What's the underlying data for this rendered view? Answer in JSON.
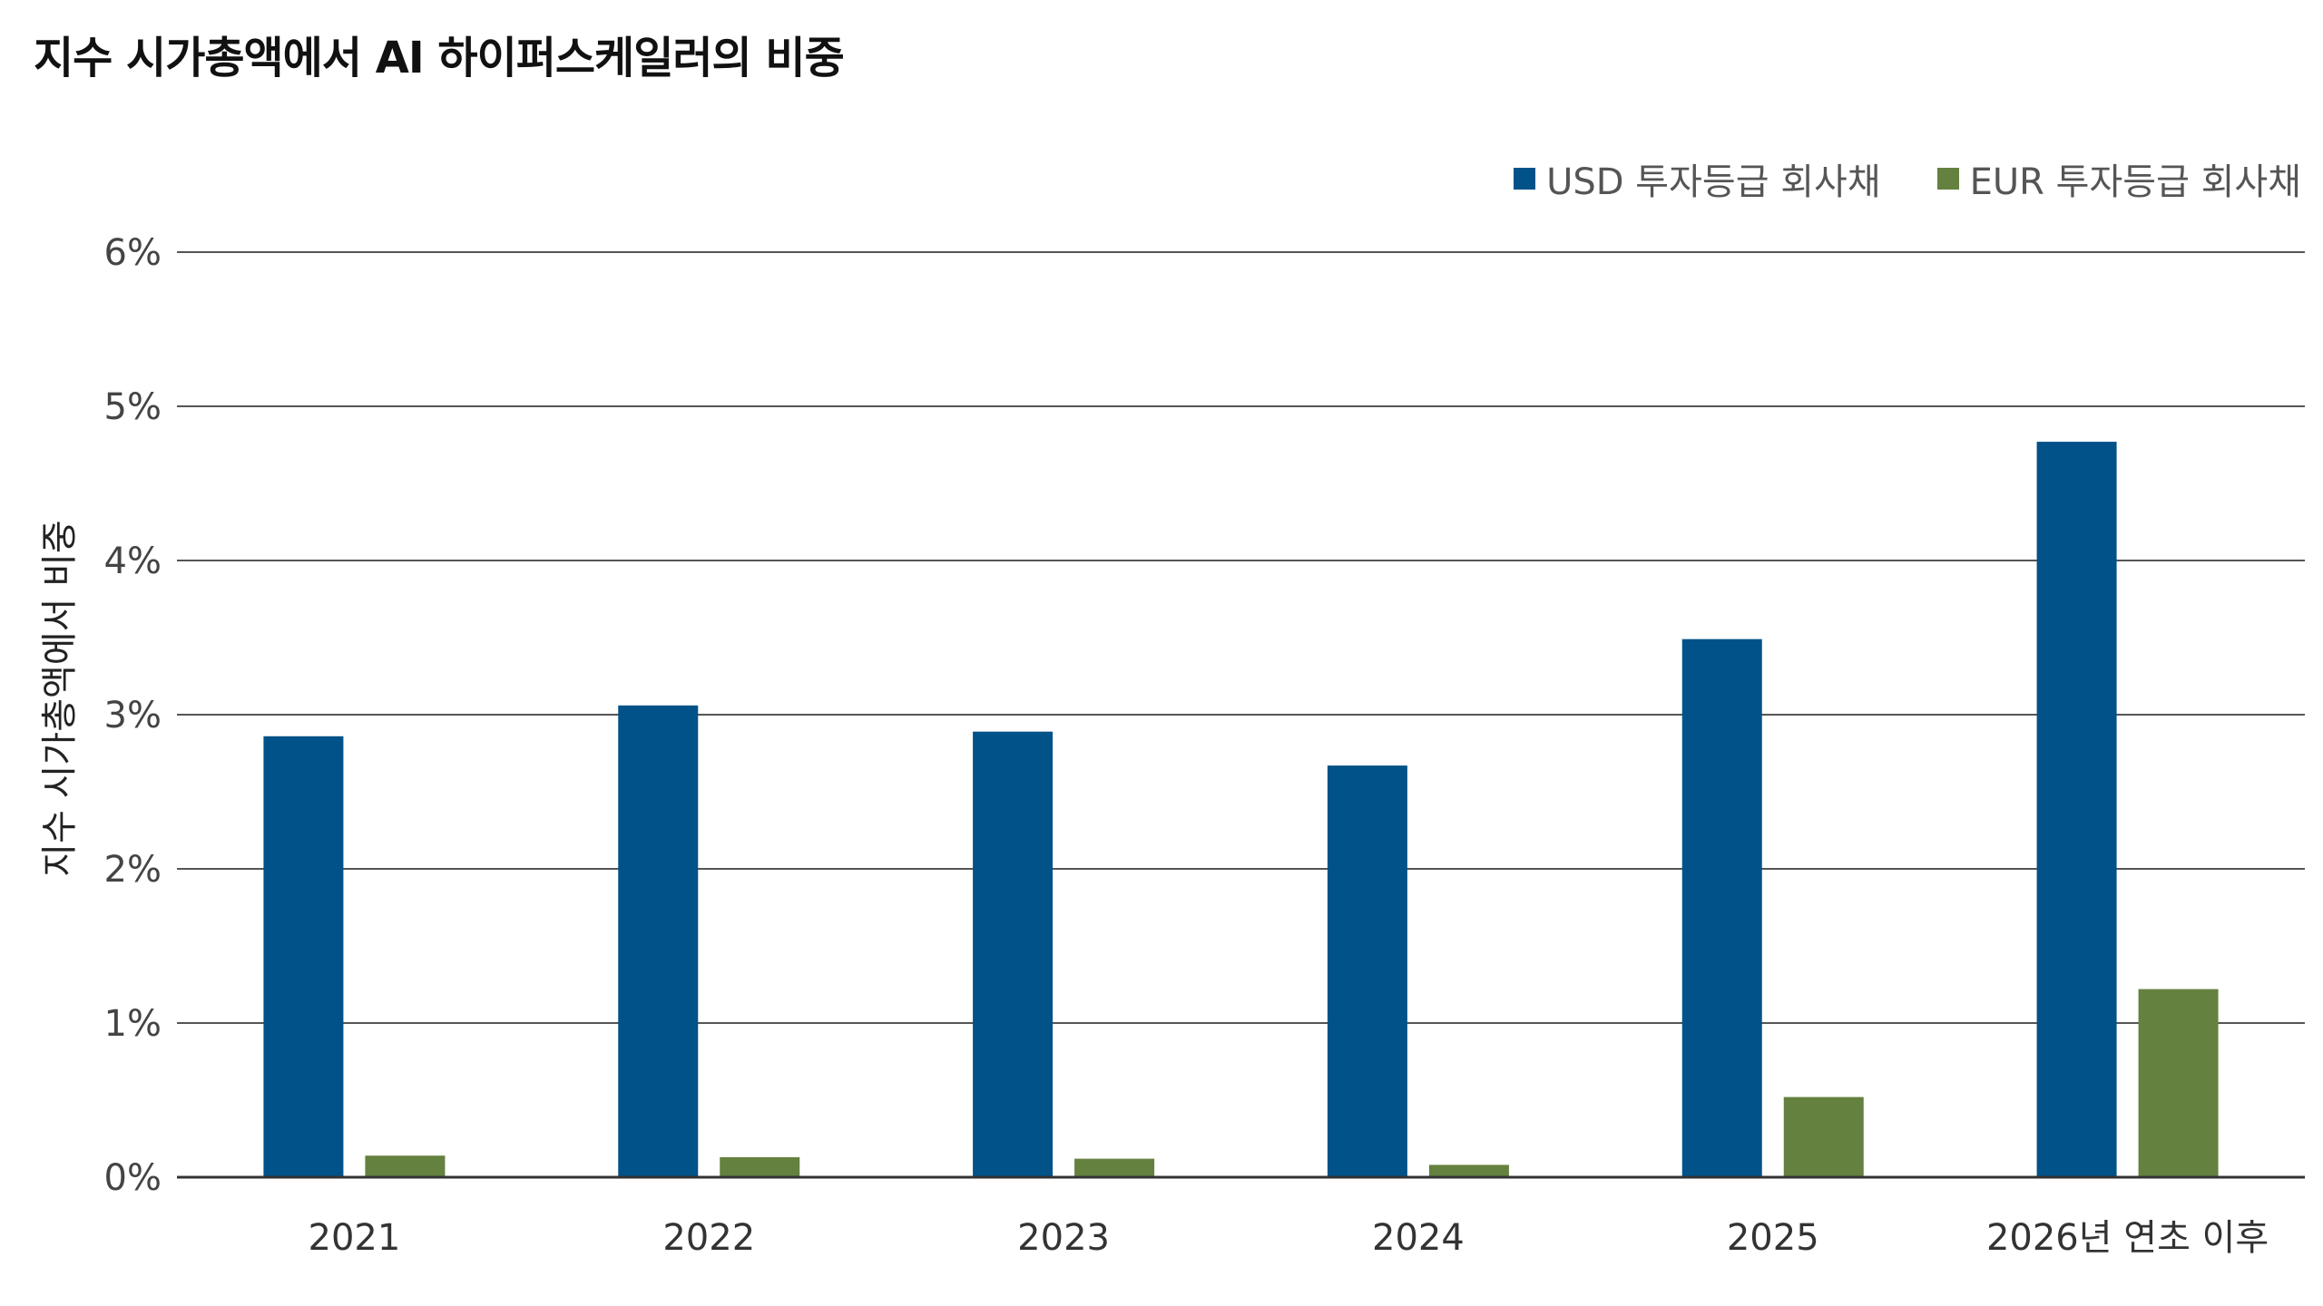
{
  "title": "지수 시가총액에서 AI 하이퍼스케일러의 비중",
  "chart_data": {
    "type": "bar",
    "title": "지수 시가총액에서 AI 하이퍼스케일러의 비중",
    "xlabel": "",
    "ylabel": "지수 시가총액에서 비중",
    "categories": [
      "2021",
      "2022",
      "2023",
      "2024",
      "2025",
      "2026년 연초 이후"
    ],
    "series": [
      {
        "name": "USD 투자등급 회사채",
        "color": "#005288",
        "values": [
          2.86,
          3.06,
          2.89,
          2.67,
          3.49,
          4.77
        ]
      },
      {
        "name": "EUR 투자등급 회사채",
        "color": "#64813F",
        "values": [
          0.14,
          0.13,
          0.12,
          0.08,
          0.52,
          1.22
        ]
      }
    ],
    "ylim": [
      0,
      6
    ],
    "yticks": [
      0,
      1,
      2,
      3,
      4,
      5,
      6
    ],
    "ytick_labels": [
      "0%",
      "1%",
      "2%",
      "3%",
      "4%",
      "5%",
      "6%"
    ],
    "grid": true,
    "legend_position": "top-right"
  }
}
